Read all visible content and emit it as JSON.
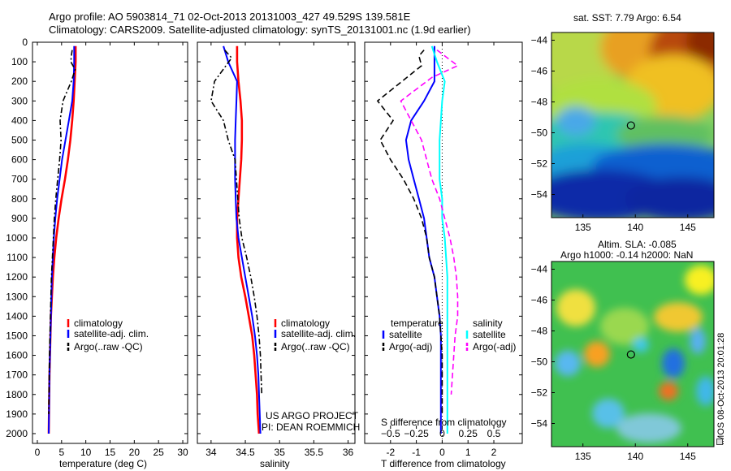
{
  "header": {
    "line1": "Argo profile: AO 5903814_71 02-Oct-2013 20131003_427 49.529S 139.581E",
    "line2": "Climatology: CARS2009. Satellite-adjusted climatology: synTS_20131001.nc (1.9d earlier)"
  },
  "colors": {
    "clim": "#ff0000",
    "sat": "#0000ff",
    "argo": "#000000",
    "cyan": "#00ffff",
    "magenta": "#ff00ff"
  },
  "chart_data": [
    {
      "type": "line",
      "panel": "temperature",
      "xlabel": "temperature (deg C)",
      "ylabel": "",
      "xlim": [
        -1,
        31
      ],
      "ylim": [
        2050,
        0
      ],
      "xticks": [
        0,
        5,
        10,
        15,
        20,
        25,
        30
      ],
      "yticks": [
        0,
        100,
        200,
        300,
        400,
        500,
        600,
        700,
        800,
        900,
        1000,
        1100,
        1200,
        1300,
        1400,
        1500,
        1600,
        1700,
        1800,
        1900,
        2000
      ],
      "legend": [
        "climatology",
        "satellite-adj. clim.",
        "Argo(..raw -QC)"
      ],
      "series": [
        {
          "name": "climatology",
          "color": "#ff0000",
          "dash": "solid",
          "x": [
            7.9,
            7.9,
            7.7,
            7.5,
            7.2,
            6.8,
            6.3,
            5.7,
            5.0,
            4.4,
            3.9,
            3.5,
            3.2,
            3.0,
            2.8,
            2.7,
            2.6,
            2.5,
            2.45,
            2.4,
            2.35
          ],
          "y": [
            20,
            100,
            200,
            300,
            400,
            500,
            600,
            700,
            800,
            900,
            1000,
            1100,
            1200,
            1300,
            1400,
            1500,
            1600,
            1700,
            1800,
            1900,
            2000
          ]
        },
        {
          "name": "satellite-adj. clim.",
          "color": "#0000ff",
          "dash": "solid",
          "x": [
            7.6,
            7.6,
            7.5,
            7.2,
            6.5,
            5.8,
            5.1,
            4.6,
            4.1,
            3.7,
            3.4,
            3.2,
            3.0,
            2.9,
            2.8,
            2.7,
            2.6,
            2.5,
            2.45,
            2.4,
            2.35
          ],
          "y": [
            20,
            100,
            200,
            300,
            400,
            500,
            600,
            700,
            800,
            900,
            1000,
            1100,
            1200,
            1300,
            1400,
            1500,
            1600,
            1700,
            1800,
            1900,
            2000
          ]
        },
        {
          "name": "Argo(..raw -QC)",
          "color": "#000000",
          "dash": "dashdot",
          "x": [
            7.2,
            7.0,
            6.9,
            7.8,
            7.0,
            5.3,
            4.7,
            4.9,
            4.6,
            4.2,
            3.8,
            3.5,
            3.3,
            3.1,
            2.9,
            2.8,
            2.7,
            2.6,
            2.5,
            2.45,
            2.4,
            2.35
          ],
          "y": [
            40,
            70,
            100,
            140,
            200,
            300,
            400,
            500,
            600,
            700,
            800,
            900,
            1000,
            1100,
            1200,
            1300,
            1400,
            1500,
            1600,
            1700,
            1800,
            1900
          ]
        }
      ]
    },
    {
      "type": "line",
      "panel": "salinity",
      "xlabel": "salinity",
      "ylabel": "",
      "xlim": [
        33.8,
        36.1
      ],
      "ylim": [
        2050,
        0
      ],
      "xticks": [
        34,
        34.5,
        35,
        35.5,
        36
      ],
      "legend": [
        "climatology",
        "satellite-adj. clim.",
        "Argo(..raw -QC)"
      ],
      "series": [
        {
          "name": "climatology",
          "color": "#ff0000",
          "dash": "solid",
          "x": [
            34.38,
            34.38,
            34.4,
            34.43,
            34.45,
            34.45,
            34.44,
            34.42,
            34.4,
            34.38,
            34.38,
            34.4,
            34.44,
            34.5,
            34.55,
            34.6,
            34.63,
            34.65,
            34.67,
            34.68,
            34.7
          ],
          "y": [
            20,
            100,
            200,
            300,
            400,
            500,
            600,
            700,
            800,
            900,
            1000,
            1100,
            1200,
            1300,
            1400,
            1500,
            1600,
            1700,
            1800,
            1900,
            2000
          ]
        },
        {
          "name": "satellite-adj. clim.",
          "color": "#0000ff",
          "dash": "solid",
          "x": [
            34.18,
            34.25,
            34.38,
            34.37,
            34.36,
            34.35,
            34.35,
            34.35,
            34.36,
            34.37,
            34.4,
            34.45,
            34.5,
            34.55,
            34.6,
            34.64,
            34.67,
            34.69,
            34.7,
            34.71,
            34.72
          ],
          "y": [
            20,
            100,
            200,
            300,
            400,
            500,
            600,
            700,
            800,
            900,
            1000,
            1100,
            1200,
            1300,
            1400,
            1500,
            1600,
            1700,
            1800,
            1900,
            2000
          ]
        },
        {
          "name": "Argo(..raw -QC)",
          "color": "#000000",
          "dash": "dashdot",
          "x": [
            34.2,
            34.3,
            34.05,
            34.0,
            34.18,
            34.25,
            34.35,
            34.37,
            34.39,
            34.41,
            34.45,
            34.52,
            34.58,
            34.63,
            34.67,
            34.7,
            34.72,
            34.73,
            34.74
          ],
          "y": [
            40,
            80,
            200,
            300,
            400,
            500,
            600,
            700,
            800,
            900,
            1000,
            1100,
            1200,
            1300,
            1400,
            1500,
            1600,
            1700,
            1800
          ]
        }
      ]
    },
    {
      "type": "line",
      "panel": "difference",
      "xlabel": "T difference from climatology",
      "xlabel2": "S difference from climatology",
      "xlim": [
        -3,
        3.1
      ],
      "ylim": [
        2050,
        0
      ],
      "xticks": [
        -2,
        -1,
        0,
        1,
        2
      ],
      "sticks": [
        "-0.5",
        "-0.25",
        "0",
        "0.25",
        "0.5"
      ],
      "legend": {
        "temperature_heading": "temperature",
        "salinity_heading": "salinity",
        "entries": [
          "satellite",
          "Argo(-adj)",
          "satellite",
          "Argo(-adj)"
        ]
      },
      "series": [
        {
          "name": "temperature satellite",
          "color": "#0000ff",
          "dash": "solid",
          "x": [
            -0.3,
            -0.3,
            -0.3,
            -0.7,
            -1.2,
            -1.4,
            -1.3,
            -1.1,
            -0.9,
            -0.7,
            -0.6,
            -0.5,
            -0.3,
            -0.2,
            -0.1,
            -0.05,
            -0.05,
            -0.05,
            -0.05,
            -0.05,
            -0.05
          ],
          "y": [
            20,
            100,
            200,
            300,
            400,
            500,
            600,
            700,
            800,
            900,
            1000,
            1100,
            1200,
            1300,
            1400,
            1500,
            1600,
            1700,
            1800,
            1900,
            2000
          ]
        },
        {
          "name": "temperature Argo(-adj)",
          "color": "#000000",
          "dash": "dashed",
          "x": [
            -0.7,
            -0.9,
            -0.8,
            -2.5,
            -1.9,
            -2.4,
            -2.0,
            -1.5,
            -1.1,
            -0.8,
            -0.6,
            -0.5,
            -0.3,
            -0.2,
            -0.1,
            -0.05,
            0.0,
            0.0,
            0.0,
            0.0
          ],
          "y": [
            40,
            70,
            120,
            300,
            400,
            500,
            600,
            700,
            800,
            900,
            1000,
            1100,
            1200,
            1300,
            1400,
            1500,
            1600,
            1700,
            1800,
            1900
          ]
        },
        {
          "name": "salinity satellite",
          "color": "#00ffff",
          "dash": "solid",
          "x": [
            -0.4,
            -0.2,
            0.1,
            0.0,
            -0.05,
            -0.1,
            -0.1,
            -0.1,
            0.0,
            0.0,
            0.1,
            0.15,
            0.2,
            0.2,
            0.2,
            0.2,
            0.2,
            0.2,
            0.2,
            0.2,
            0.2
          ],
          "y": [
            20,
            100,
            200,
            300,
            400,
            500,
            600,
            700,
            800,
            900,
            1000,
            1100,
            1200,
            1300,
            1400,
            1500,
            1600,
            1700,
            1800,
            1900,
            2000
          ]
        },
        {
          "name": "salinity Argo(-adj)",
          "color": "#ff00ff",
          "dash": "dashed",
          "x": [
            -0.2,
            0.6,
            -0.4,
            -1.6,
            -1.2,
            -0.8,
            -0.6,
            -0.4,
            -0.1,
            0.1,
            0.3,
            0.45,
            0.55,
            0.6,
            0.6,
            0.5,
            0.45,
            0.4,
            0.35
          ],
          "y": [
            40,
            120,
            180,
            300,
            400,
            500,
            600,
            700,
            800,
            900,
            1000,
            1100,
            1200,
            1300,
            1400,
            1500,
            1600,
            1700,
            1800
          ]
        }
      ]
    },
    {
      "type": "heatmap",
      "panel": "sst-map",
      "title": "sat. SST: 7.79 Argo: 6.54",
      "xticks": [
        "135",
        "140",
        "145"
      ],
      "yticks": [
        "-44",
        "-46",
        "-48",
        "-50",
        "-52",
        "-54"
      ],
      "xlim": [
        132,
        147.5
      ],
      "ylim": [
        -55.5,
        -43.5
      ],
      "marker": {
        "lon": 139.581,
        "lat": -49.529
      }
    },
    {
      "type": "heatmap",
      "panel": "sla-map",
      "title": "Altim. SLA: -0.085",
      "subtitle": "Argo h1000: -0.14 h2000: NaN",
      "xticks": [
        "135",
        "140",
        "145"
      ],
      "yticks": [
        "-44",
        "-46",
        "-48",
        "-50",
        "-52",
        "-54"
      ],
      "xlim": [
        132,
        147.5
      ],
      "ylim": [
        -55.5,
        -43.5
      ],
      "marker": {
        "lon": 139.581,
        "lat": -49.529
      }
    }
  ],
  "depth_ticks": [
    "0",
    "100",
    "200",
    "300",
    "400",
    "500",
    "600",
    "700",
    "800",
    "900",
    "1000",
    "1100",
    "1200",
    "1300",
    "1400",
    "1500",
    "1600",
    "1700",
    "1800",
    "1900",
    "2000"
  ],
  "legend_left": [
    "climatology",
    "satellite-adj. clim.",
    "Argo(..raw -QC)"
  ],
  "credit": {
    "line1": "US ARGO PROJECT",
    "line2": "PI: DEAN ROEMMICH"
  },
  "imos_stamp": "IMOS 08-Oct-2013 20:01:28"
}
